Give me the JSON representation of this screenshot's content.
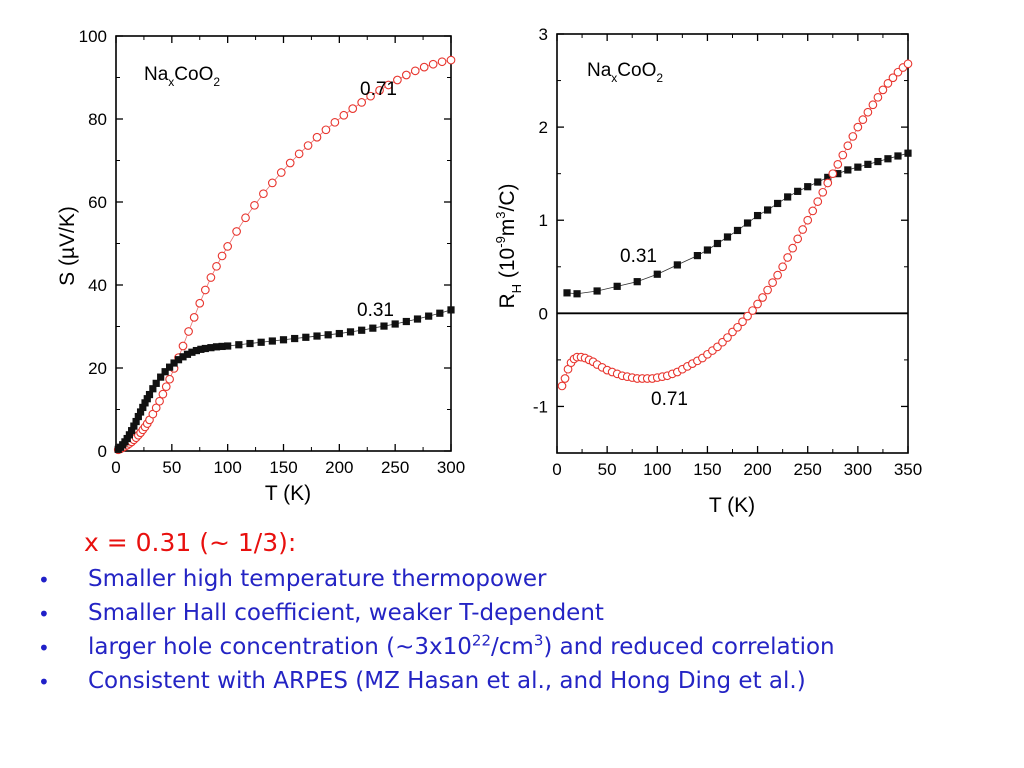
{
  "chart_data": [
    {
      "type": "scatter",
      "panel": "left",
      "annotation_main": "Na",
      "annotation_sub": "x",
      "annotation_rest": "CoO",
      "annotation_sub2": "2",
      "xlabel": "T (K)",
      "ylabel": "S (µV/K)",
      "xlim": [
        0,
        300
      ],
      "ylim": [
        0,
        100
      ],
      "xticks": [
        "0",
        "50",
        "100",
        "150",
        "200",
        "250",
        "300"
      ],
      "yticks": [
        "0",
        "20",
        "40",
        "60",
        "80",
        "100"
      ],
      "grid": false,
      "series": [
        {
          "name": "0.71",
          "marker": "open-circle",
          "color": "#e8362f",
          "x": [
            2,
            4,
            6,
            8,
            10,
            12,
            14,
            16,
            18,
            20,
            22,
            24,
            26,
            28,
            30,
            33,
            36,
            39,
            42,
            45,
            48,
            52,
            56,
            60,
            65,
            70,
            75,
            80,
            85,
            90,
            95,
            100,
            108,
            116,
            124,
            132,
            140,
            148,
            156,
            164,
            172,
            180,
            188,
            196,
            204,
            212,
            220,
            228,
            236,
            244,
            252,
            260,
            268,
            276,
            284,
            292,
            300
          ],
          "y": [
            0.3,
            0.5,
            0.8,
            1.1,
            1.4,
            1.8,
            2.2,
            2.7,
            3.2,
            3.8,
            4.4,
            5.1,
            5.8,
            6.6,
            7.5,
            8.9,
            10.4,
            12,
            13.7,
            15.5,
            17.3,
            19.9,
            22.5,
            25.3,
            28.8,
            32.2,
            35.6,
            38.8,
            41.8,
            44.5,
            47,
            49.3,
            52.9,
            56.2,
            59.2,
            62,
            64.6,
            67.1,
            69.4,
            71.6,
            73.6,
            75.6,
            77.4,
            79.2,
            80.9,
            82.5,
            84,
            85.5,
            86.9,
            88.2,
            89.4,
            90.6,
            91.6,
            92.5,
            93.2,
            93.8,
            94.2
          ]
        },
        {
          "name": "0.31",
          "marker": "filled-square",
          "color": "#111111",
          "x": [
            2,
            4,
            6,
            8,
            10,
            12,
            14,
            16,
            18,
            20,
            22,
            24,
            26,
            28,
            30,
            33,
            36,
            40,
            44,
            48,
            52,
            56,
            60,
            64,
            68,
            72,
            76,
            80,
            85,
            90,
            95,
            100,
            110,
            120,
            130,
            140,
            150,
            160,
            170,
            180,
            190,
            200,
            210,
            220,
            230,
            240,
            250,
            260,
            270,
            280,
            290,
            300
          ],
          "y": [
            0.4,
            0.9,
            1.5,
            2.2,
            3,
            3.9,
            4.9,
            6,
            7.1,
            8.3,
            9.4,
            10.5,
            11.6,
            12.6,
            13.6,
            15,
            16.3,
            17.8,
            19.1,
            20.2,
            21.2,
            22,
            22.7,
            23.3,
            23.8,
            24.2,
            24.5,
            24.7,
            24.9,
            25.1,
            25.2,
            25.3,
            25.6,
            25.9,
            26.2,
            26.5,
            26.8,
            27.1,
            27.4,
            27.7,
            28,
            28.3,
            28.7,
            29.1,
            29.6,
            30.1,
            30.6,
            31.2,
            31.8,
            32.5,
            33.2,
            34
          ]
        }
      ]
    },
    {
      "type": "scatter",
      "panel": "right",
      "annotation_main": "Na",
      "annotation_sub": "x",
      "annotation_rest": "CoO",
      "annotation_sub2": "2",
      "xlabel": "T (K)",
      "ylabel_parts": [
        "R",
        "H",
        " (10",
        "-9",
        "m",
        "3",
        "/C)"
      ],
      "xlim": [
        0,
        350
      ],
      "ylim": [
        -1.5,
        3
      ],
      "xticks": [
        "0",
        "50",
        "100",
        "150",
        "200",
        "250",
        "300",
        "350"
      ],
      "yticks": [
        "-1",
        "0",
        "1",
        "2",
        "3"
      ],
      "zero_line": true,
      "grid": false,
      "series": [
        {
          "name": "0.31",
          "marker": "filled-square",
          "color": "#111111",
          "x": [
            10,
            20,
            40,
            60,
            80,
            100,
            120,
            140,
            150,
            160,
            170,
            180,
            190,
            200,
            210,
            220,
            230,
            240,
            250,
            260,
            270,
            280,
            290,
            300,
            310,
            320,
            330,
            340,
            350
          ],
          "y": [
            0.22,
            0.21,
            0.24,
            0.29,
            0.34,
            0.42,
            0.52,
            0.62,
            0.68,
            0.75,
            0.82,
            0.89,
            0.97,
            1.05,
            1.11,
            1.18,
            1.25,
            1.31,
            1.36,
            1.41,
            1.46,
            1.5,
            1.54,
            1.57,
            1.6,
            1.63,
            1.66,
            1.69,
            1.72
          ]
        },
        {
          "name": "0.71",
          "marker": "open-circle",
          "color": "#e8362f",
          "x": [
            5,
            8,
            11,
            14,
            17,
            20,
            24,
            28,
            32,
            36,
            40,
            45,
            50,
            55,
            60,
            65,
            70,
            75,
            80,
            85,
            90,
            95,
            100,
            105,
            110,
            115,
            120,
            125,
            130,
            135,
            140,
            145,
            150,
            155,
            160,
            165,
            170,
            175,
            180,
            185,
            190,
            195,
            200,
            205,
            210,
            215,
            220,
            225,
            230,
            235,
            240,
            245,
            250,
            255,
            260,
            265,
            270,
            275,
            280,
            285,
            290,
            295,
            300,
            305,
            310,
            315,
            320,
            325,
            330,
            335,
            340,
            345,
            350
          ],
          "y": [
            -0.78,
            -0.7,
            -0.6,
            -0.53,
            -0.49,
            -0.47,
            -0.47,
            -0.48,
            -0.5,
            -0.52,
            -0.55,
            -0.58,
            -0.61,
            -0.63,
            -0.65,
            -0.67,
            -0.68,
            -0.69,
            -0.7,
            -0.7,
            -0.7,
            -0.7,
            -0.69,
            -0.68,
            -0.67,
            -0.65,
            -0.63,
            -0.6,
            -0.57,
            -0.54,
            -0.51,
            -0.48,
            -0.44,
            -0.4,
            -0.36,
            -0.31,
            -0.26,
            -0.2,
            -0.15,
            -0.09,
            -0.03,
            0.03,
            0.1,
            0.17,
            0.25,
            0.33,
            0.41,
            0.5,
            0.6,
            0.7,
            0.8,
            0.9,
            1.0,
            1.1,
            1.2,
            1.3,
            1.4,
            1.5,
            1.6,
            1.7,
            1.8,
            1.9,
            2.0,
            2.08,
            2.16,
            2.24,
            2.32,
            2.4,
            2.47,
            2.53,
            2.59,
            2.64,
            2.68
          ]
        }
      ]
    }
  ],
  "notes": {
    "heading": "x = 0.31 (~ 1/3):",
    "bullet_char": "•",
    "bullets": [
      {
        "text": "Smaller high temperature thermopower"
      },
      {
        "text": "Smaller Hall coefficient, weaker T-dependent"
      },
      {
        "pre": "larger hole concentration (~3x10",
        "sup1": "22",
        "mid": "/cm",
        "sup2": "3",
        "post": ") and reduced correlation"
      },
      {
        "text": "Consistent with ARPES (MZ Hasan et al., and Hong Ding et al.)"
      }
    ],
    "heading_color": "#e8100e",
    "bullet_color": "#2424c4"
  }
}
